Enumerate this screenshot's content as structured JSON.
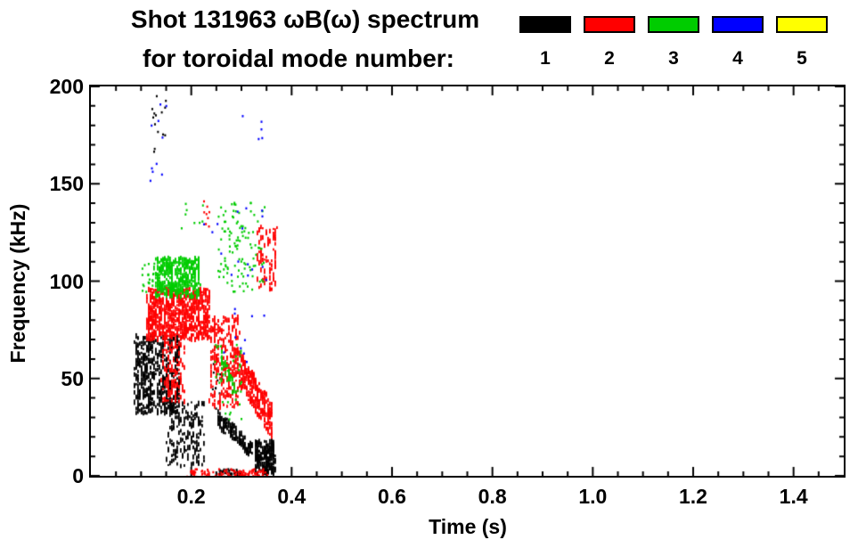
{
  "title": {
    "line1": "Shot 131963 ωB(ω) spectrum",
    "line2": "for toroidal mode number:"
  },
  "legend": {
    "items": [
      {
        "mode": "1",
        "color": "#000000"
      },
      {
        "mode": "2",
        "color": "#ff0000"
      },
      {
        "mode": "3",
        "color": "#00cc00"
      },
      {
        "mode": "4",
        "color": "#0000ff"
      },
      {
        "mode": "5",
        "color": "#ffff00"
      }
    ]
  },
  "chart_data": {
    "type": "scatter",
    "title": "Shot 131963 ωB(ω) spectrum for toroidal mode number: 1 2 3 4 5",
    "xlabel": "Time (s)",
    "ylabel": "Frequency (kHz)",
    "xlim": [
      0.0,
      1.5
    ],
    "ylim": [
      0,
      200
    ],
    "xticks": [
      0.2,
      0.4,
      0.6,
      0.8,
      1.0,
      1.2,
      1.4
    ],
    "xtick_labels": [
      "0.2",
      "0.4",
      "0.6",
      "0.8",
      "1.0",
      "1.2",
      "1.4"
    ],
    "x_major_step": 0.2,
    "x_minor_step": 0.05,
    "yticks": [
      0,
      50,
      100,
      150,
      200
    ],
    "ytick_labels": [
      "0",
      "50",
      "100",
      "150",
      "200"
    ],
    "y_major_step": 50,
    "y_minor_step": 10,
    "grid": false,
    "legend_position": "top-right",
    "series": [
      {
        "name": "1",
        "label": "toroidal mode n=1",
        "color": "#000000",
        "clusters": [
          {
            "style": "streak",
            "t": [
              0.085,
              0.175
            ],
            "f": [
              32,
              72
            ],
            "n": 500
          },
          {
            "style": "streak",
            "t": [
              0.15,
              0.225
            ],
            "f": [
              5,
              38
            ],
            "n": 180
          },
          {
            "style": "band",
            "t": [
              0.25,
              0.32
            ],
            "f": [
              30,
              13
            ],
            "bw": 4,
            "n": 130
          },
          {
            "style": "streak",
            "t": [
              0.325,
              0.365
            ],
            "f": [
              1,
              18
            ],
            "n": 220
          },
          {
            "style": "dots",
            "t": [
              0.25,
              0.3
            ],
            "f": [
              0,
              4
            ],
            "n": 50
          },
          {
            "style": "dots",
            "t": [
              0.118,
              0.148
            ],
            "f": [
              165,
              196
            ],
            "n": 14
          },
          {
            "style": "dots",
            "t": [
              0.24,
              0.27
            ],
            "f": [
              35,
              60
            ],
            "n": 15
          }
        ]
      },
      {
        "name": "2",
        "label": "toroidal mode n=2",
        "color": "#ff0000",
        "clusters": [
          {
            "style": "streak",
            "t": [
              0.11,
              0.235
            ],
            "f": [
              70,
              96
            ],
            "n": 700
          },
          {
            "style": "streak",
            "t": [
              0.14,
              0.185
            ],
            "f": [
              38,
              70
            ],
            "n": 120
          },
          {
            "style": "streak",
            "t": [
              0.235,
              0.295
            ],
            "f": [
              35,
              82
            ],
            "n": 260
          },
          {
            "style": "band",
            "t": [
              0.295,
              0.36
            ],
            "f": [
              55,
              28
            ],
            "bw": 9,
            "n": 260
          },
          {
            "style": "streak",
            "t": [
              0.33,
              0.368
            ],
            "f": [
              95,
              128
            ],
            "n": 90
          },
          {
            "style": "dots",
            "t": [
              0.19,
              0.35
            ],
            "f": [
              0,
              4
            ],
            "n": 110
          },
          {
            "style": "dots",
            "t": [
              0.222,
              0.235
            ],
            "f": [
              128,
              142
            ],
            "n": 8
          }
        ]
      },
      {
        "name": "3",
        "label": "toroidal mode n=3",
        "color": "#00cc00",
        "clusters": [
          {
            "style": "streak",
            "t": [
              0.125,
              0.215
            ],
            "f": [
              92,
              112
            ],
            "n": 380
          },
          {
            "style": "dots",
            "t": [
              0.25,
              0.345
            ],
            "f": [
              95,
              142
            ],
            "n": 110
          },
          {
            "style": "dots",
            "t": [
              0.245,
              0.3
            ],
            "f": [
              28,
              68
            ],
            "n": 40
          },
          {
            "style": "dots",
            "t": [
              0.17,
              0.23
            ],
            "f": [
              126,
              142
            ],
            "n": 8
          },
          {
            "style": "dots",
            "t": [
              0.1,
              0.125
            ],
            "f": [
              95,
              110
            ],
            "n": 20
          },
          {
            "style": "band",
            "t": [
              0.255,
              0.29
            ],
            "f": [
              62,
              40
            ],
            "bw": 4,
            "n": 40
          }
        ]
      },
      {
        "name": "4",
        "label": "toroidal mode n=4",
        "color": "#0000ff",
        "clusters": [
          {
            "style": "dots",
            "t": [
              0.115,
              0.15
            ],
            "f": [
              148,
              192
            ],
            "n": 10
          },
          {
            "style": "dots",
            "t": [
              0.19,
              0.35
            ],
            "f": [
              98,
              138
            ],
            "n": 16
          },
          {
            "style": "dots",
            "t": [
              0.24,
              0.35
            ],
            "f": [
              58,
              92
            ],
            "n": 10
          },
          {
            "style": "dots",
            "t": [
              0.3,
              0.345
            ],
            "f": [
              165,
              190
            ],
            "n": 5
          }
        ]
      },
      {
        "name": "5",
        "label": "toroidal mode n=5",
        "color": "#ffff00",
        "clusters": []
      }
    ]
  }
}
